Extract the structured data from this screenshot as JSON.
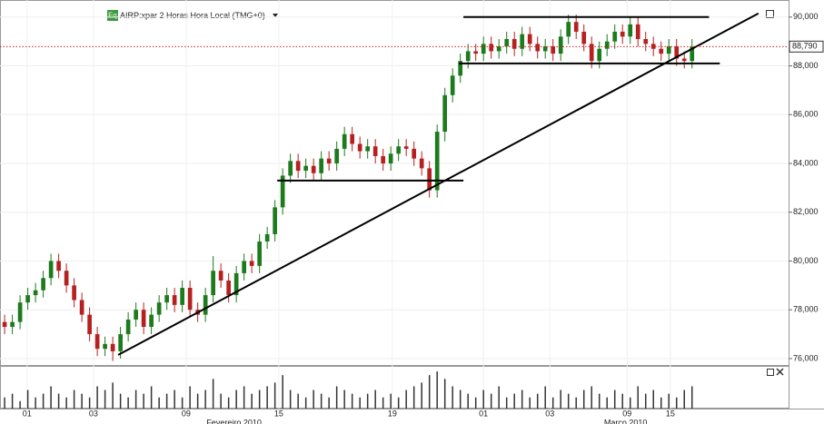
{
  "chart_data": {
    "type": "candlestick",
    "badge": "Eq",
    "title": "AIRP:xpar 2 Horas Hora Local (TMG+0)",
    "open": [
      77.5,
      77.3,
      77.5,
      78.3,
      78.6,
      78.8,
      79.3,
      80.0,
      79.6,
      79.0,
      78.4,
      77.8,
      77.0,
      76.4,
      76.6,
      76.3,
      77.0,
      77.6,
      78.0,
      77.3,
      77.8,
      78.3,
      78.6,
      78.2,
      78.9,
      78.0,
      77.8,
      78.6,
      79.6,
      79.2,
      78.6,
      79.5,
      80.0,
      79.8,
      80.8,
      81.1,
      82.2,
      83.5,
      84.1,
      83.7,
      83.9,
      83.6,
      84.2,
      84.0,
      84.6,
      85.2,
      84.8,
      84.5,
      84.7,
      84.3,
      84.0,
      84.4,
      84.7,
      84.6,
      84.2,
      83.8,
      82.9,
      85.3,
      86.8,
      87.6,
      88.2,
      88.6,
      88.5,
      88.9,
      88.6,
      88.8,
      89.1,
      88.7,
      89.3,
      88.9,
      88.6,
      88.8,
      88.5,
      89.2,
      89.8,
      89.4,
      88.9,
      88.2,
      88.7,
      89.0,
      89.4,
      89.2,
      89.7,
      89.1,
      88.9,
      88.7,
      88.5,
      88.8,
      88.3,
      88.2
    ],
    "high": [
      77.8,
      77.8,
      78.6,
      78.9,
      79.1,
      79.6,
      80.3,
      80.3,
      79.9,
      79.3,
      78.7,
      78.1,
      77.3,
      76.9,
      76.9,
      77.3,
      77.9,
      78.3,
      78.3,
      78.1,
      78.6,
      78.9,
      78.9,
      79.2,
      79.2,
      78.3,
      78.9,
      80.2,
      79.9,
      79.5,
      79.8,
      80.3,
      80.3,
      81.1,
      81.4,
      82.5,
      83.8,
      84.4,
      84.4,
      84.2,
      84.2,
      84.5,
      84.5,
      84.9,
      85.5,
      85.5,
      85.1,
      85.0,
      85.0,
      84.6,
      84.7,
      85.0,
      85.0,
      84.9,
      84.5,
      84.1,
      85.6,
      87.1,
      87.9,
      88.5,
      88.9,
      88.9,
      89.2,
      89.2,
      89.1,
      89.4,
      89.4,
      89.6,
      89.6,
      89.2,
      89.1,
      89.1,
      89.5,
      90.1,
      90.1,
      89.7,
      89.2,
      89.0,
      89.3,
      89.7,
      89.7,
      90.0,
      90.0,
      89.4,
      89.2,
      89.0,
      89.1,
      89.1,
      88.6,
      89.1
    ],
    "low": [
      77.0,
      77.0,
      77.2,
      78.0,
      78.3,
      78.5,
      79.0,
      79.3,
      78.7,
      78.1,
      77.5,
      76.7,
      76.1,
      76.1,
      75.9,
      76.0,
      76.7,
      77.3,
      77.0,
      77.0,
      77.5,
      78.0,
      77.9,
      77.9,
      77.7,
      77.5,
      77.5,
      78.3,
      78.9,
      78.3,
      78.3,
      79.2,
      79.5,
      79.5,
      80.5,
      80.8,
      81.9,
      83.2,
      83.4,
      83.4,
      83.3,
      83.3,
      83.7,
      83.7,
      84.3,
      84.5,
      84.2,
      84.2,
      84.0,
      83.7,
      83.7,
      84.1,
      84.3,
      83.9,
      83.5,
      82.6,
      82.6,
      84.9,
      86.5,
      87.3,
      87.9,
      88.2,
      88.2,
      88.3,
      88.3,
      88.5,
      88.4,
      88.4,
      88.6,
      88.3,
      88.3,
      88.2,
      88.2,
      88.9,
      89.1,
      88.6,
      87.9,
      87.9,
      88.4,
      88.7,
      88.9,
      88.9,
      88.8,
      88.6,
      88.4,
      88.2,
      88.2,
      88.0,
      87.9,
      87.9
    ],
    "close": [
      77.3,
      77.5,
      78.3,
      78.6,
      78.8,
      79.3,
      80.0,
      79.6,
      79.0,
      78.4,
      77.8,
      77.0,
      76.4,
      76.6,
      76.3,
      77.0,
      77.6,
      78.0,
      77.3,
      77.8,
      78.3,
      78.6,
      78.2,
      78.9,
      78.0,
      77.8,
      78.6,
      79.6,
      79.2,
      78.6,
      79.5,
      80.0,
      79.8,
      80.8,
      81.1,
      82.2,
      83.5,
      84.1,
      83.7,
      83.9,
      83.6,
      84.2,
      84.0,
      84.6,
      85.2,
      84.8,
      84.5,
      84.7,
      84.3,
      84.0,
      84.4,
      84.7,
      84.6,
      84.2,
      83.8,
      82.9,
      85.3,
      86.8,
      87.6,
      88.2,
      88.6,
      88.5,
      88.9,
      88.6,
      88.8,
      89.1,
      88.7,
      89.3,
      88.9,
      88.6,
      88.8,
      88.5,
      89.2,
      89.8,
      89.4,
      88.9,
      88.2,
      88.7,
      89.0,
      89.4,
      89.2,
      89.7,
      89.1,
      88.9,
      88.7,
      88.5,
      88.8,
      88.3,
      88.2,
      88.79
    ],
    "volume": [
      3,
      4,
      2,
      5,
      3,
      4,
      6,
      4,
      3,
      5,
      4,
      3,
      6,
      5,
      7,
      4,
      3,
      5,
      4,
      6,
      3,
      4,
      5,
      3,
      6,
      4,
      5,
      8,
      4,
      3,
      5,
      6,
      4,
      5,
      6,
      7,
      9,
      5,
      4,
      3,
      5,
      4,
      3,
      6,
      5,
      4,
      3,
      4,
      5,
      3,
      4,
      3,
      5,
      6,
      7,
      9,
      10,
      8,
      6,
      5,
      4,
      3,
      5,
      4,
      6,
      3,
      4,
      5,
      3,
      4,
      6,
      3,
      5,
      4,
      3,
      5,
      6,
      4,
      3,
      5,
      4,
      3,
      6,
      4,
      5,
      3,
      4,
      3,
      5,
      6
    ],
    "up_color": "#1d7a1d",
    "down_color": "#b52020",
    "volume_color": "#333333",
    "xlim": [
      -0.6,
      101.5
    ],
    "volume_ylim": [
      0,
      11
    ],
    "ylim": [
      75.7,
      90.7
    ],
    "yticks": [
      {
        "value": 76,
        "label": "76,000"
      },
      {
        "value": 78,
        "label": "78,000"
      },
      {
        "value": 80,
        "label": "80,000"
      },
      {
        "value": 82,
        "label": "82,000"
      },
      {
        "value": 84,
        "label": "84,000"
      },
      {
        "value": 86,
        "label": "86,000"
      },
      {
        "value": 88,
        "label": "88,000"
      },
      {
        "value": 90,
        "label": "90,000"
      }
    ],
    "xticks": [
      {
        "value": 2.9,
        "label": "01"
      },
      {
        "value": 11.5,
        "label": "03"
      },
      {
        "value": 23.5,
        "label": "09"
      },
      {
        "value": 35.5,
        "label": "15"
      },
      {
        "value": 50.2,
        "label": "19"
      },
      {
        "value": 62,
        "label": "01"
      },
      {
        "value": 70.6,
        "label": "03"
      },
      {
        "value": 80.6,
        "label": "09"
      },
      {
        "value": 86.2,
        "label": "15"
      }
    ],
    "months": [
      {
        "value": 29.7,
        "label": "Fevereiro 2010"
      },
      {
        "value": 80.4,
        "label": "Março 2010"
      }
    ],
    "last_price": {
      "value": 88.79,
      "label": "88,790"
    },
    "lines": [
      {
        "x": [
          14.7,
          97.6
        ],
        "y": [
          76.15,
          90.15
        ]
      },
      {
        "x": [
          59.4,
          91.2
        ],
        "y": [
          90.0,
          90.0
        ]
      },
      {
        "x": [
          58.8,
          92.6
        ],
        "y": [
          88.1,
          88.1
        ]
      },
      {
        "x": [
          35.3,
          59.4
        ],
        "y": [
          83.3,
          83.3
        ]
      }
    ],
    "grid": true
  }
}
